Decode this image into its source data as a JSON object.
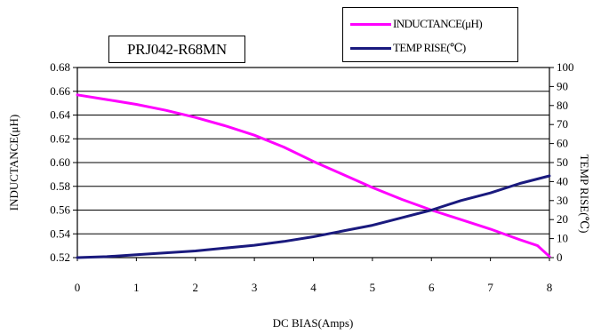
{
  "chart_data": {
    "type": "line",
    "title": "PRJ042-R68MN",
    "xlabel": "DC BIAS(Amps)",
    "ylabel": "INDUCTANCE(μH)",
    "y2label": "TEMP RISE(℃)",
    "xlim": [
      0,
      8
    ],
    "ylim": [
      0.52,
      0.68
    ],
    "y2lim": [
      0,
      100
    ],
    "xticks": [
      "0",
      "1",
      "2",
      "3",
      "4",
      "5",
      "6",
      "7",
      "8"
    ],
    "yticks": [
      "0.52",
      "0.54",
      "0.56",
      "0.58",
      "0.60",
      "0.62",
      "0.64",
      "0.66",
      "0.68"
    ],
    "y2ticks": [
      "0",
      "10",
      "20",
      "30",
      "40",
      "50",
      "60",
      "70",
      "80",
      "90",
      "100"
    ],
    "grid": true,
    "legend_position": "top-right",
    "series": [
      {
        "name": "INDUCTANCE(μH)",
        "axis": "left",
        "color": "#ff00ff",
        "x": [
          0,
          0.5,
          1,
          1.5,
          2,
          2.5,
          3,
          3.5,
          4,
          4.5,
          5,
          5.5,
          6,
          6.5,
          7,
          7.5,
          7.8,
          8
        ],
        "y": [
          0.657,
          0.653,
          0.649,
          0.644,
          0.638,
          0.631,
          0.623,
          0.613,
          0.601,
          0.59,
          0.579,
          0.569,
          0.56,
          0.552,
          0.544,
          0.535,
          0.53,
          0.521
        ]
      },
      {
        "name": "TEMP RISE(℃)",
        "axis": "right",
        "color": "#1a1a7e",
        "x": [
          0,
          0.5,
          1,
          1.5,
          2,
          2.5,
          3,
          3.5,
          4,
          4.5,
          5,
          5.5,
          6,
          6.5,
          7,
          7.5,
          8
        ],
        "y": [
          0,
          0.5,
          1.5,
          2.5,
          3.5,
          5,
          6.5,
          8.5,
          11,
          14,
          17,
          21,
          25,
          30,
          34,
          39,
          43
        ]
      }
    ]
  }
}
